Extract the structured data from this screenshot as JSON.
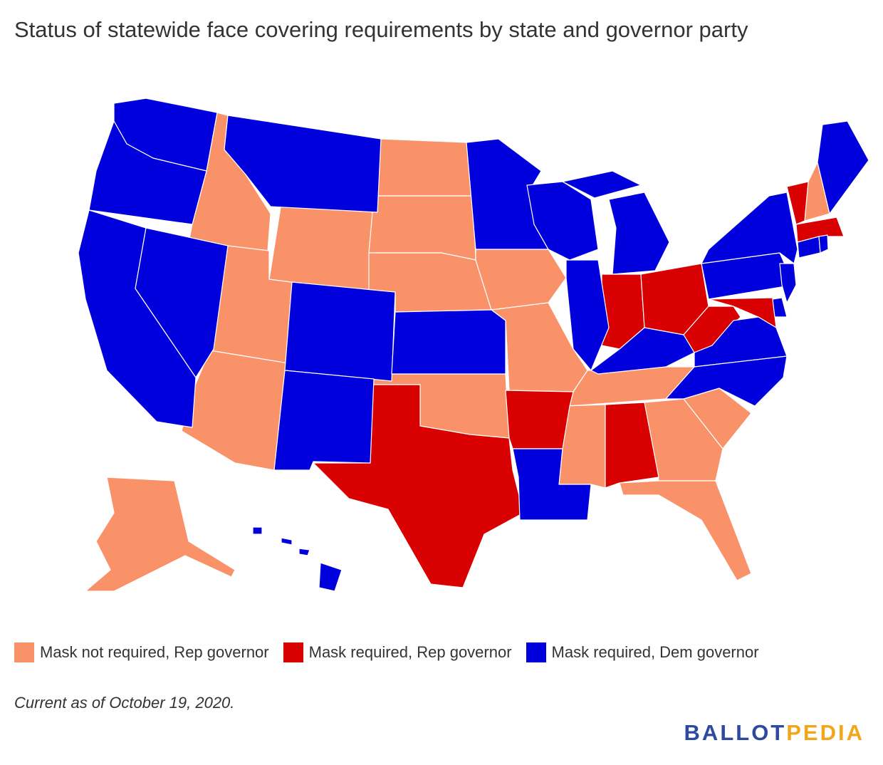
{
  "title": "Status of statewide face covering requirements by state and governor party",
  "colors": {
    "not_required_rep": "#f99269",
    "required_rep": "#d80000",
    "required_dem": "#0000dc"
  },
  "legend": [
    {
      "label": "Mask not required, Rep governor",
      "color": "#f99269"
    },
    {
      "label": "Mask required, Rep governor",
      "color": "#d80000"
    },
    {
      "label": "Mask required, Dem governor",
      "color": "#0000dc"
    }
  ],
  "footnote": "Current as of October 19, 2020.",
  "logo": {
    "part1": "BALLOT",
    "part2": "PEDIA",
    "color1": "#2d4aa0",
    "color2": "#f2a71b"
  },
  "map_data": {
    "categories": {
      "not_required_rep": [
        "Idaho",
        "Utah",
        "Arizona",
        "Wyoming",
        "North Dakota",
        "South Dakota",
        "Nebraska",
        "Iowa",
        "Missouri",
        "Oklahoma",
        "Tennessee",
        "Mississippi",
        "Georgia",
        "South Carolina",
        "Florida",
        "New Hampshire",
        "Alaska"
      ],
      "required_rep": [
        "Texas",
        "Arkansas",
        "Alabama",
        "Indiana",
        "Ohio",
        "West Virginia",
        "Maryland",
        "Vermont",
        "Massachusetts"
      ],
      "required_dem": [
        "Washington",
        "Oregon",
        "California",
        "Nevada",
        "Montana",
        "Colorado",
        "New Mexico",
        "Kansas",
        "Minnesota",
        "Wisconsin",
        "Illinois",
        "Michigan",
        "Kentucky",
        "Louisiana",
        "Virginia",
        "North Carolina",
        "Pennsylvania",
        "New York",
        "New Jersey",
        "Delaware",
        "Connecticut",
        "Rhode Island",
        "Maine",
        "Hawaii"
      ]
    }
  }
}
